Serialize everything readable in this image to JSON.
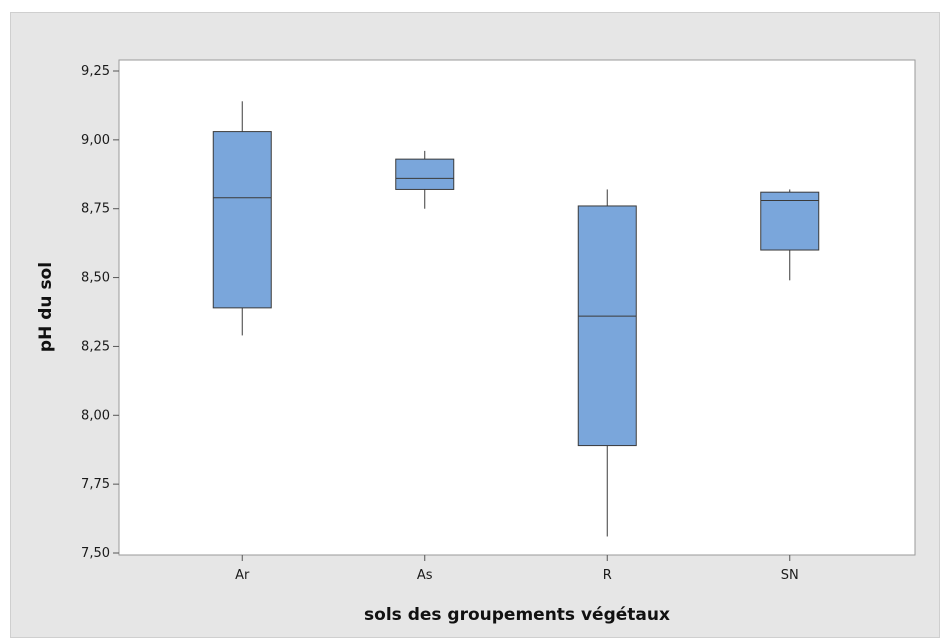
{
  "chart_data": {
    "type": "box",
    "title": "",
    "xlabel": "sols des groupements végétaux",
    "ylabel": "pH du sol",
    "ylim": [
      7.5,
      9.25
    ],
    "y_ticks": [
      "7,50",
      "7,75",
      "8,00",
      "8,25",
      "8,50",
      "8,75",
      "9,00",
      "9,25"
    ],
    "y_tick_values": [
      7.5,
      7.75,
      8.0,
      8.25,
      8.5,
      8.75,
      9.0,
      9.25
    ],
    "categories": [
      "Ar",
      "As",
      "R",
      "SN"
    ],
    "boxes": [
      {
        "category": "Ar",
        "whisker_low": 8.29,
        "q1": 8.39,
        "median": 8.79,
        "q3": 9.03,
        "whisker_high": 9.14
      },
      {
        "category": "As",
        "whisker_low": 8.75,
        "q1": 8.82,
        "median": 8.86,
        "q3": 8.93,
        "whisker_high": 8.96
      },
      {
        "category": "R",
        "whisker_low": 7.56,
        "q1": 7.89,
        "median": 8.36,
        "q3": 8.76,
        "whisker_high": 8.82
      },
      {
        "category": "SN",
        "whisker_low": 8.49,
        "q1": 8.6,
        "median": 8.78,
        "q3": 8.81,
        "whisker_high": 8.82
      }
    ],
    "grid": false,
    "legend": "none",
    "colors": {
      "box_fill": "#7aa6db",
      "box_stroke": "#3a3a3a",
      "plot_background": "#ffffff",
      "frame_background": "#e6e6e6"
    }
  }
}
